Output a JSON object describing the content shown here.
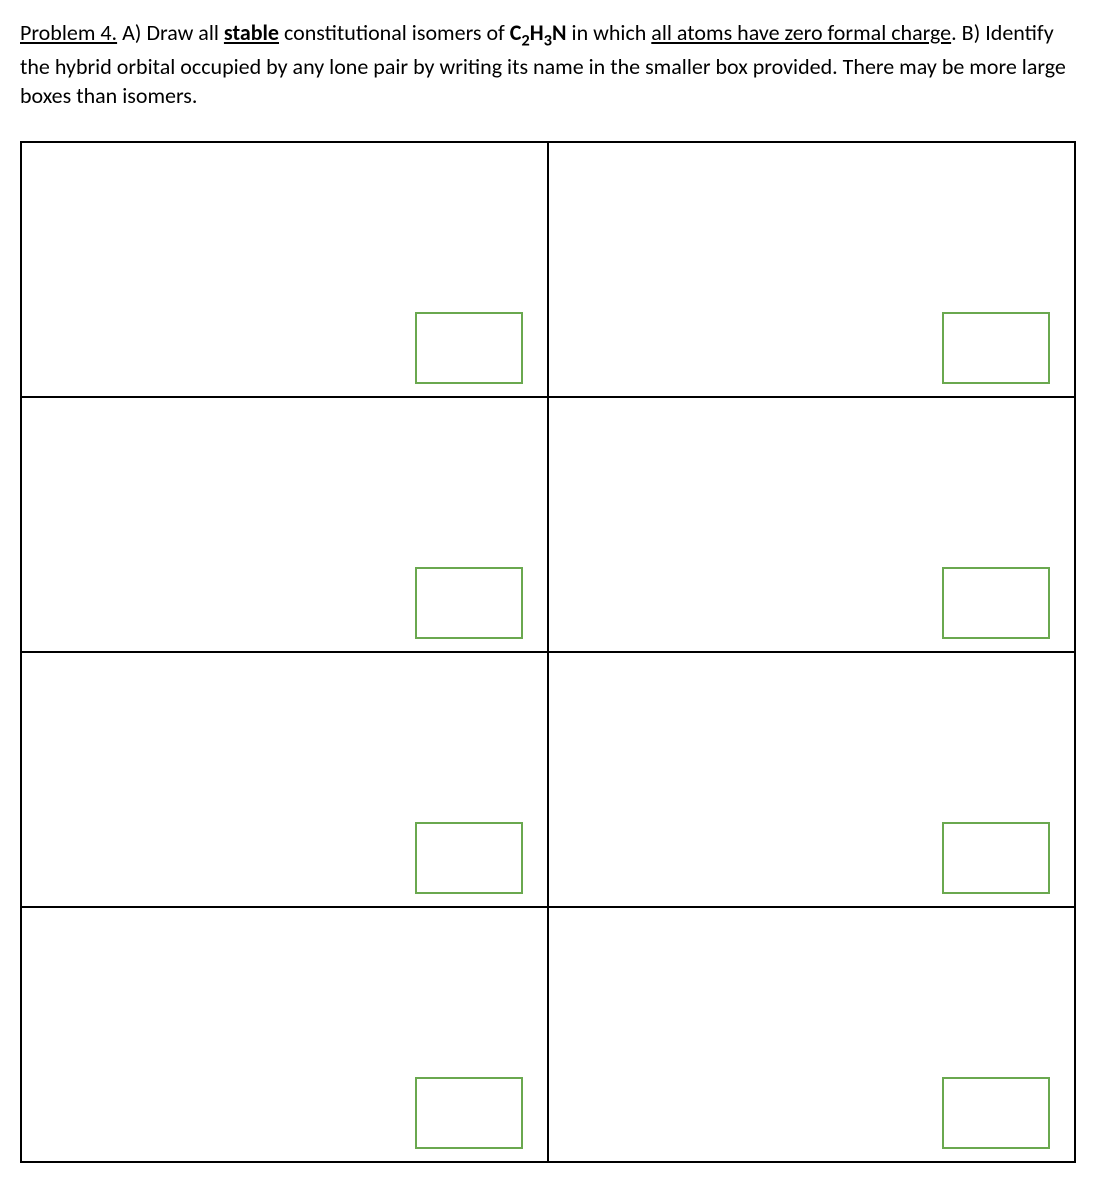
{
  "problem": {
    "label": "Problem 4.",
    "part_a": "A) Draw all",
    "stable_word": "stable",
    "part_a_mid": "constitutional isomers of",
    "formula_c": "C",
    "formula_sub2": "2",
    "formula_h": "H",
    "formula_sub3": "3",
    "formula_n": "N",
    "part_a_end": "in which",
    "charge_phrase": "all atoms have zero formal charge",
    "part_b": ".  B) Identify the hybrid orbital occupied by any lone pair by writing its name in the smaller box provided.  There may be more large boxes than isomers."
  },
  "grid": {
    "rows": 4,
    "cols": 2,
    "cell_border_color": "#000000",
    "answer_box_border_color": "#6aa84f",
    "answer_box_width": 108,
    "answer_box_height": 72
  }
}
